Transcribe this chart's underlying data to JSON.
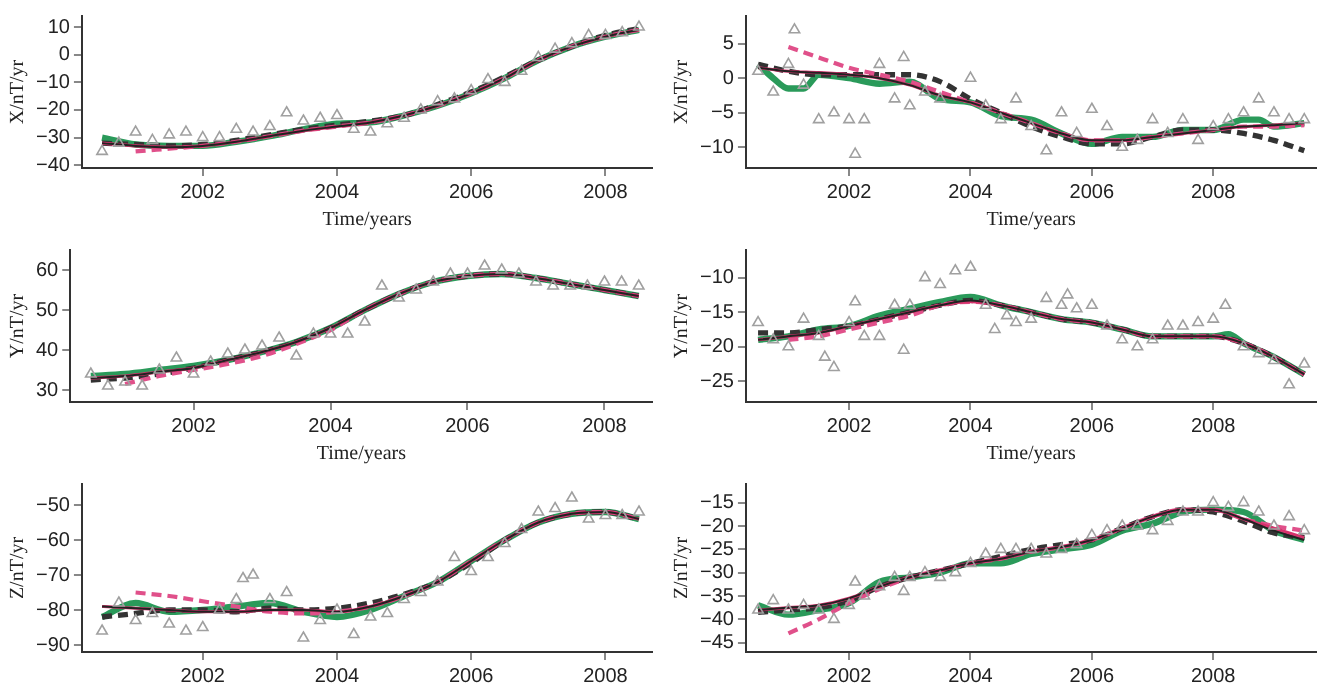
{
  "chart_data": [
    {
      "type": "line",
      "xlabel": "Time/years",
      "ylabel": "X/nT/yr",
      "xlim": [
        2000.2,
        2008.7
      ],
      "xticks": [
        2002,
        2004,
        2006,
        2008
      ],
      "ylim": [
        -41,
        14
      ],
      "yticks": [
        -40,
        -30,
        -20,
        -10,
        0,
        10
      ],
      "grid": false,
      "legend": false,
      "series": [
        {
          "type": "scatter",
          "marker": "triangle",
          "color": "#a0a0a0",
          "x": [
            2000.5,
            2000.75,
            2001,
            2001.25,
            2001.5,
            2001.75,
            2002,
            2002.25,
            2002.5,
            2002.75,
            2003,
            2003.25,
            2003.5,
            2003.75,
            2004,
            2004.25,
            2004.5,
            2004.75,
            2005,
            2005.25,
            2005.5,
            2005.75,
            2006,
            2006.25,
            2006.5,
            2006.75,
            2007,
            2007.25,
            2007.5,
            2007.75,
            2008,
            2008.25,
            2008.5
          ],
          "values": [
            -35,
            -32,
            -28,
            -31,
            -29,
            -28,
            -30,
            -30,
            -27,
            -28,
            -26,
            -21,
            -24,
            -23,
            -22,
            -27,
            -28,
            -25,
            -23,
            -20,
            -17,
            -16,
            -13,
            -9,
            -10,
            -6,
            -1,
            2,
            4,
            7,
            7,
            8,
            10
          ]
        },
        {
          "type": "line",
          "marker": "none",
          "line_style": "solid",
          "color": "#2a9a5a",
          "x": [
            2000.5,
            2001,
            2001.5,
            2002,
            2002.5,
            2003,
            2003.5,
            2004,
            2004.5,
            2005,
            2005.5,
            2006,
            2006.5,
            2007,
            2007.5,
            2008,
            2008.5
          ],
          "values": [
            -30,
            -32.5,
            -33,
            -33,
            -31.5,
            -29.5,
            -27,
            -25,
            -24.5,
            -22,
            -18.5,
            -14,
            -8.5,
            -2,
            3,
            6.5,
            9
          ]
        },
        {
          "type": "line",
          "marker": "none",
          "line_style": "dashed",
          "color": "#333333",
          "x": [
            2000.5,
            2001,
            2001.5,
            2002,
            2002.5,
            2003,
            2003.5,
            2004,
            2004.5,
            2005,
            2005.5,
            2006,
            2006.5,
            2007,
            2007.5,
            2008,
            2008.5
          ],
          "values": [
            -32,
            -32.5,
            -33,
            -32.5,
            -31,
            -29,
            -27,
            -25.5,
            -24,
            -22,
            -18,
            -13.5,
            -8,
            -2,
            3,
            7,
            9.5
          ]
        },
        {
          "type": "line",
          "marker": "none",
          "line_style": "dashed",
          "color": "#e0508a",
          "x": [
            2001,
            2001.5,
            2002,
            2002.5,
            2003,
            2003.5,
            2004,
            2004.5,
            2005,
            2005.5,
            2006,
            2006.5,
            2007,
            2007.5,
            2008,
            2008.5
          ],
          "values": [
            -35,
            -34,
            -33,
            -31.5,
            -29.5,
            -27.5,
            -26,
            -24.5,
            -22,
            -18.5,
            -14,
            -8.5,
            -2,
            3,
            6.5,
            9
          ]
        },
        {
          "type": "line",
          "marker": "none",
          "line_style": "solid",
          "color": "#d6336c",
          "x": [
            2000.5,
            2001,
            2001.5,
            2002,
            2002.5,
            2003,
            2003.5,
            2004,
            2004.5,
            2005,
            2005.5,
            2006,
            2006.5,
            2007,
            2007.5,
            2008,
            2008.5
          ],
          "values": [
            -32,
            -33,
            -33.5,
            -33,
            -31.5,
            -29.5,
            -27.5,
            -26,
            -24.5,
            -22,
            -18.5,
            -14,
            -8.5,
            -2,
            3,
            6.5,
            9
          ]
        },
        {
          "type": "line",
          "marker": "none",
          "line_style": "solid",
          "color": "#222222",
          "x": [
            2000.5,
            2001,
            2001.5,
            2002,
            2002.5,
            2003,
            2003.5,
            2004,
            2004.5,
            2005,
            2005.5,
            2006,
            2006.5,
            2007,
            2007.5,
            2008,
            2008.5
          ],
          "values": [
            -32,
            -33,
            -33.5,
            -33,
            -31.5,
            -29.5,
            -27.5,
            -26,
            -24.5,
            -22,
            -18.5,
            -14,
            -8.5,
            -2,
            3,
            6.5,
            9
          ]
        }
      ]
    },
    {
      "type": "line",
      "xlabel": "Time/years",
      "ylabel": "X/nT/yr",
      "xlim": [
        2000.3,
        2009.7
      ],
      "xticks": [
        2002,
        2004,
        2006,
        2008
      ],
      "ylim": [
        -13,
        9
      ],
      "yticks": [
        -10,
        -5,
        0,
        5
      ],
      "grid": false,
      "legend": false,
      "series": [
        {
          "type": "scatter",
          "marker": "triangle",
          "color": "#a0a0a0",
          "x": [
            2000.5,
            2000.75,
            2001,
            2001.1,
            2001.25,
            2001.5,
            2001.75,
            2002,
            2002.1,
            2002.25,
            2002.5,
            2002.75,
            2002.9,
            2003,
            2003.25,
            2003.5,
            2004,
            2004.25,
            2004.5,
            2004.75,
            2005,
            2005.25,
            2005.5,
            2005.75,
            2006,
            2006.25,
            2006.5,
            2006.75,
            2007,
            2007.25,
            2007.5,
            2007.75,
            2008,
            2008.25,
            2008.5,
            2008.75,
            2009,
            2009.25,
            2009.5
          ],
          "values": [
            1,
            -2,
            2,
            7,
            -1,
            -6,
            -5,
            -6,
            -11,
            -6,
            2,
            -3,
            3,
            -4,
            -2,
            -3,
            0,
            -4,
            -6,
            -3,
            -7,
            -10.5,
            -5,
            -8,
            -4.5,
            -7,
            -10,
            -9,
            -6,
            -8,
            -6,
            -9,
            -7,
            -6,
            -5,
            -3,
            -5,
            -6,
            -6
          ]
        },
        {
          "type": "line",
          "marker": "none",
          "line_style": "solid",
          "color": "#2a9a5a",
          "x": [
            2000.5,
            2000.75,
            2001,
            2001.25,
            2001.5,
            2002,
            2002.5,
            2003,
            2003.5,
            2004,
            2004.5,
            2005,
            2005.5,
            2006,
            2006.5,
            2007,
            2007.5,
            2008,
            2008.5,
            2008.75,
            2009,
            2009.5
          ],
          "values": [
            2,
            0,
            -1.5,
            -1.5,
            0.5,
            0,
            -0.8,
            -0.5,
            -3,
            -3.5,
            -5.5,
            -6,
            -8,
            -9.5,
            -8.5,
            -8.5,
            -7.5,
            -7.5,
            -6,
            -6,
            -7,
            -6.5
          ]
        },
        {
          "type": "line",
          "marker": "none",
          "line_style": "dashed",
          "color": "#333333",
          "x": [
            2000.5,
            2001,
            2001.5,
            2002,
            2002.5,
            2003,
            2003.5,
            2004,
            2004.5,
            2005,
            2005.5,
            2006,
            2006.5,
            2007,
            2007.5,
            2008,
            2008.5,
            2009,
            2009.5
          ],
          "values": [
            2,
            1,
            0.5,
            0.5,
            0.5,
            0.5,
            -0.5,
            -3,
            -5,
            -7,
            -8.5,
            -9.5,
            -9.5,
            -8.5,
            -7.5,
            -7.5,
            -8,
            -9,
            -10.5
          ]
        },
        {
          "type": "line",
          "marker": "none",
          "line_style": "dashed",
          "color": "#e0508a",
          "x": [
            2001,
            2001.5,
            2002,
            2002.5,
            2003,
            2003.5,
            2004,
            2004.5,
            2005,
            2005.5,
            2006,
            2006.5,
            2007,
            2007.5,
            2008,
            2008.5,
            2009,
            2009.5
          ],
          "values": [
            4.5,
            3,
            1.5,
            0.5,
            -0.5,
            -2,
            -3.5,
            -5,
            -6.5,
            -8,
            -9,
            -9,
            -8.5,
            -8,
            -7.5,
            -7,
            -7,
            -6.8
          ]
        },
        {
          "type": "line",
          "marker": "none",
          "line_style": "solid",
          "color": "#d6336c",
          "x": [
            2000.5,
            2001,
            2001.5,
            2002,
            2002.5,
            2003,
            2003.5,
            2004,
            2004.5,
            2005,
            2005.5,
            2006,
            2006.5,
            2007,
            2007.5,
            2008,
            2008.5,
            2009,
            2009.5
          ],
          "values": [
            1.5,
            1,
            0.8,
            0.5,
            0,
            -1,
            -2.5,
            -3.5,
            -5,
            -6.5,
            -8,
            -9,
            -9,
            -8.5,
            -8,
            -7.5,
            -7,
            -6.8,
            -6.5
          ]
        },
        {
          "type": "line",
          "marker": "none",
          "line_style": "solid",
          "color": "#222222",
          "x": [
            2000.5,
            2001,
            2001.5,
            2002,
            2002.5,
            2003,
            2003.5,
            2004,
            2004.5,
            2005,
            2005.5,
            2006,
            2006.5,
            2007,
            2007.5,
            2008,
            2008.5,
            2009,
            2009.5
          ],
          "values": [
            1.5,
            1,
            0.8,
            0.5,
            0,
            -1,
            -2.5,
            -3.5,
            -5,
            -6.5,
            -8,
            -9,
            -9,
            -8.5,
            -8,
            -7.5,
            -7,
            -6.8,
            -6.5
          ]
        }
      ]
    },
    {
      "type": "line",
      "xlabel": "Time/years",
      "ylabel": "Y/nT/yr",
      "xlim": [
        2000.2,
        2008.7
      ],
      "xticks": [
        2002,
        2004,
        2006,
        2008
      ],
      "ylim": [
        27,
        65
      ],
      "yticks": [
        30,
        40,
        50,
        60
      ],
      "grid": false,
      "legend": false,
      "series": [
        {
          "type": "scatter",
          "marker": "triangle",
          "color": "#a0a0a0",
          "x": [
            2000.5,
            2000.75,
            2001,
            2001.25,
            2001.5,
            2001.75,
            2002,
            2002.25,
            2002.5,
            2002.75,
            2003,
            2003.25,
            2003.5,
            2003.75,
            2004,
            2004.25,
            2004.5,
            2004.75,
            2005,
            2005.25,
            2005.5,
            2005.75,
            2006,
            2006.25,
            2006.5,
            2006.75,
            2007,
            2007.25,
            2007.5,
            2007.75,
            2008,
            2008.25,
            2008.5
          ],
          "values": [
            34,
            31,
            32,
            31,
            35,
            38,
            34,
            37,
            39,
            40,
            41,
            43,
            38.5,
            44,
            44,
            44,
            47,
            56,
            53,
            55,
            57,
            59,
            59,
            61,
            60,
            59,
            57,
            56,
            56,
            56,
            57,
            57,
            56
          ]
        },
        {
          "type": "line",
          "marker": "none",
          "line_style": "solid",
          "color": "#2a9a5a",
          "x": [
            2000.5,
            2001,
            2001.5,
            2002,
            2002.5,
            2003,
            2003.5,
            2004,
            2004.5,
            2005,
            2005.5,
            2006,
            2006.5,
            2007,
            2007.5,
            2008,
            2008.5
          ],
          "values": [
            33.5,
            34,
            35,
            36,
            37.5,
            39.5,
            42,
            45.5,
            50,
            54,
            57,
            58.5,
            59,
            58,
            56.5,
            55,
            53.5
          ]
        },
        {
          "type": "line",
          "marker": "none",
          "line_style": "dashed",
          "color": "#333333",
          "x": [
            2000.5,
            2001,
            2001.5,
            2002,
            2002.5,
            2003,
            2003.5,
            2004,
            2004.5,
            2005,
            2005.5,
            2006,
            2006.5,
            2007,
            2007.5,
            2008,
            2008.5
          ],
          "values": [
            32.5,
            33,
            34,
            35.5,
            37.5,
            39.5,
            42,
            45.5,
            50,
            54,
            57,
            58.5,
            59,
            58,
            56.5,
            55,
            53.5
          ]
        },
        {
          "type": "line",
          "marker": "none",
          "line_style": "dashed",
          "color": "#e0508a",
          "x": [
            2001,
            2001.5,
            2002,
            2002.5,
            2003,
            2003.5,
            2004,
            2004.5,
            2005,
            2005.5,
            2006,
            2006.5,
            2007,
            2007.5,
            2008,
            2008.5
          ],
          "values": [
            31.5,
            33.5,
            35,
            36.5,
            38.5,
            41.5,
            45,
            50,
            54,
            57,
            58.5,
            59,
            58,
            56.5,
            55,
            53.5
          ]
        },
        {
          "type": "line",
          "marker": "none",
          "line_style": "solid",
          "color": "#d6336c",
          "x": [
            2000.5,
            2001,
            2001.5,
            2002,
            2002.5,
            2003,
            2003.5,
            2004,
            2004.5,
            2005,
            2005.5,
            2006,
            2006.5,
            2007,
            2007.5,
            2008,
            2008.5
          ],
          "values": [
            33,
            33.5,
            34.5,
            35.5,
            37.5,
            39.5,
            42,
            45.5,
            50,
            54,
            57,
            58.5,
            59,
            58,
            56.5,
            55,
            53.5
          ]
        },
        {
          "type": "line",
          "marker": "none",
          "line_style": "solid",
          "color": "#222222",
          "x": [
            2000.5,
            2001,
            2001.5,
            2002,
            2002.5,
            2003,
            2003.5,
            2004,
            2004.5,
            2005,
            2005.5,
            2006,
            2006.5,
            2007,
            2007.5,
            2008,
            2008.5
          ],
          "values": [
            33,
            33.5,
            34.5,
            35.5,
            37.5,
            39.5,
            42,
            45.5,
            50,
            54,
            57,
            58.5,
            59,
            58,
            56.5,
            55,
            53.5
          ]
        }
      ]
    },
    {
      "type": "line",
      "xlabel": "Time/years",
      "ylabel": "Y/nT/yr",
      "xlim": [
        2000.3,
        2009.7
      ],
      "xticks": [
        2002,
        2004,
        2006,
        2008
      ],
      "ylim": [
        -28,
        -6
      ],
      "yticks": [
        -25,
        -20,
        -15,
        -10
      ],
      "grid": false,
      "legend": false,
      "series": [
        {
          "type": "scatter",
          "marker": "triangle",
          "color": "#a0a0a0",
          "x": [
            2000.5,
            2000.75,
            2001,
            2001.25,
            2001.5,
            2001.6,
            2001.75,
            2002,
            2002.1,
            2002.25,
            2002.5,
            2002.75,
            2002.9,
            2003,
            2003.25,
            2003.5,
            2003.75,
            2004,
            2004.25,
            2004.4,
            2004.6,
            2004.75,
            2005,
            2005.25,
            2005.5,
            2005.6,
            2005.75,
            2006,
            2006.25,
            2006.5,
            2006.75,
            2007,
            2007.25,
            2007.5,
            2007.75,
            2008,
            2008.2,
            2008.5,
            2008.75,
            2009,
            2009.25,
            2009.5
          ],
          "values": [
            -16.5,
            -19,
            -20,
            -16,
            -18.5,
            -21.5,
            -23,
            -16.5,
            -13.5,
            -18.5,
            -18.5,
            -14,
            -20.5,
            -14,
            -10,
            -11,
            -9,
            -8.5,
            -14,
            -17.5,
            -15.5,
            -16.5,
            -16,
            -13,
            -14,
            -12.5,
            -14.5,
            -14,
            -17,
            -19,
            -20,
            -19,
            -17,
            -17,
            -16.5,
            -16,
            -14,
            -20,
            -21,
            -22,
            -25.5,
            -22.5
          ]
        },
        {
          "type": "line",
          "marker": "none",
          "line_style": "solid",
          "color": "#2a9a5a",
          "x": [
            2000.5,
            2001,
            2001.5,
            2002,
            2002.5,
            2003,
            2003.5,
            2004,
            2004.5,
            2005,
            2005.5,
            2006,
            2006.5,
            2007,
            2007.5,
            2008,
            2008.25,
            2008.5,
            2009,
            2009.5
          ],
          "values": [
            -19,
            -18.5,
            -17.5,
            -17,
            -15.5,
            -14.5,
            -13.5,
            -12.8,
            -14,
            -15,
            -16,
            -16.5,
            -17.5,
            -18.5,
            -18.5,
            -18.5,
            -18.2,
            -19.5,
            -21.5,
            -24
          ]
        },
        {
          "type": "line",
          "marker": "none",
          "line_style": "dashed",
          "color": "#333333",
          "x": [
            2000.5,
            2001,
            2001.5,
            2002,
            2002.5,
            2003,
            2003.5,
            2004,
            2004.5,
            2005,
            2005.5,
            2006,
            2006.5,
            2007,
            2007.5,
            2008,
            2008.5,
            2009,
            2009.5
          ],
          "values": [
            -18,
            -18,
            -17.5,
            -17,
            -16,
            -15,
            -14,
            -13.3,
            -14,
            -15,
            -16,
            -16.5,
            -17.5,
            -18.5,
            -18.5,
            -18.5,
            -19.5,
            -21.5,
            -24
          ]
        },
        {
          "type": "line",
          "marker": "none",
          "line_style": "dashed",
          "color": "#e0508a",
          "x": [
            2001,
            2001.5,
            2002,
            2002.5,
            2003,
            2003.5,
            2004,
            2004.5,
            2005,
            2005.5,
            2006,
            2006.5,
            2007,
            2007.5,
            2008,
            2008.5,
            2009,
            2009.5
          ],
          "values": [
            -19,
            -18.5,
            -17.5,
            -16.5,
            -15.5,
            -14,
            -13.5,
            -14,
            -15,
            -16,
            -16.5,
            -17.5,
            -18.5,
            -18.5,
            -18.5,
            -19.5,
            -21.5,
            -24
          ]
        },
        {
          "type": "line",
          "marker": "none",
          "line_style": "solid",
          "color": "#d6336c",
          "x": [
            2000.5,
            2001,
            2001.5,
            2002,
            2002.5,
            2003,
            2003.5,
            2004,
            2004.5,
            2005,
            2005.5,
            2006,
            2006.5,
            2007,
            2007.5,
            2008,
            2008.5,
            2009,
            2009.5
          ],
          "values": [
            -19,
            -18.5,
            -18,
            -17,
            -16,
            -15,
            -14,
            -13.5,
            -14,
            -15,
            -16,
            -16.5,
            -17.5,
            -18.5,
            -18.5,
            -18.5,
            -19.5,
            -21.5,
            -24
          ]
        },
        {
          "type": "line",
          "marker": "none",
          "line_style": "solid",
          "color": "#222222",
          "x": [
            2000.5,
            2001,
            2001.5,
            2002,
            2002.5,
            2003,
            2003.5,
            2004,
            2004.5,
            2005,
            2005.5,
            2006,
            2006.5,
            2007,
            2007.5,
            2008,
            2008.5,
            2009,
            2009.5
          ],
          "values": [
            -19,
            -18.5,
            -18,
            -17,
            -16,
            -15,
            -14,
            -13.3,
            -14,
            -15,
            -16,
            -16.5,
            -17.5,
            -18.5,
            -18.5,
            -18.5,
            -19.5,
            -21.5,
            -24
          ]
        }
      ]
    },
    {
      "type": "line",
      "ylabel": "Z/nT/yr",
      "xlim": [
        2000.2,
        2008.7
      ],
      "xticks": [
        2002,
        2004,
        2006,
        2008
      ],
      "ylim": [
        -92,
        -44
      ],
      "yticks": [
        -90,
        -80,
        -70,
        -60,
        -50
      ],
      "grid": false,
      "legend": false,
      "series": [
        {
          "type": "scatter",
          "marker": "triangle",
          "color": "#a0a0a0",
          "x": [
            2000.5,
            2000.75,
            2001,
            2001.25,
            2001.5,
            2001.75,
            2002,
            2002.25,
            2002.5,
            2002.6,
            2002.75,
            2003,
            2003.25,
            2003.5,
            2003.75,
            2004,
            2004.25,
            2004.5,
            2004.75,
            2005,
            2005.25,
            2005.5,
            2005.75,
            2006,
            2006.25,
            2006.5,
            2006.75,
            2007,
            2007.25,
            2007.5,
            2007.75,
            2008,
            2008.25,
            2008.5
          ],
          "values": [
            -86,
            -78,
            -83,
            -81,
            -84,
            -86,
            -85,
            -80,
            -77,
            -71,
            -70,
            -77,
            -75,
            -88,
            -83,
            -80,
            -87,
            -82,
            -81,
            -77,
            -75,
            -72,
            -65,
            -69,
            -65,
            -61,
            -57,
            -52,
            -51,
            -48,
            -54,
            -53,
            -53,
            -52
          ]
        },
        {
          "type": "line",
          "marker": "none",
          "line_style": "solid",
          "color": "#2a9a5a",
          "x": [
            2000.5,
            2001,
            2001.5,
            2002,
            2002.5,
            2003,
            2003.5,
            2004,
            2004.5,
            2005,
            2005.5,
            2006,
            2006.5,
            2007,
            2007.5,
            2008,
            2008.5
          ],
          "values": [
            -82,
            -78,
            -80.5,
            -80,
            -79,
            -78,
            -80.5,
            -82,
            -80,
            -76,
            -72,
            -66,
            -60,
            -55,
            -52.5,
            -52,
            -54
          ]
        },
        {
          "type": "line",
          "marker": "none",
          "line_style": "dashed",
          "color": "#333333",
          "x": [
            2000.5,
            2001,
            2001.5,
            2002,
            2002.5,
            2003,
            2003.5,
            2004,
            2004.5,
            2005,
            2005.5,
            2006,
            2006.5,
            2007,
            2007.5,
            2008,
            2008.5
          ],
          "values": [
            -82,
            -81,
            -80,
            -80,
            -80.5,
            -79.5,
            -80,
            -79.5,
            -78,
            -75.5,
            -72,
            -66.5,
            -60,
            -55,
            -52.5,
            -52,
            -54
          ]
        },
        {
          "type": "line",
          "marker": "none",
          "line_style": "dashed",
          "color": "#e0508a",
          "x": [
            2001,
            2001.5,
            2002,
            2002.5,
            2003,
            2003.5,
            2004,
            2004.5,
            2005,
            2005.5,
            2006,
            2006.5,
            2007,
            2007.5,
            2008,
            2008.5
          ],
          "values": [
            -75,
            -76,
            -77.5,
            -79,
            -80.5,
            -81,
            -80.5,
            -79,
            -76,
            -72,
            -66,
            -60,
            -55,
            -52.5,
            -52,
            -54
          ]
        },
        {
          "type": "line",
          "marker": "none",
          "line_style": "solid",
          "color": "#d6336c",
          "x": [
            2000.5,
            2001,
            2001.5,
            2002,
            2002.5,
            2003,
            2003.5,
            2004,
            2004.5,
            2005,
            2005.5,
            2006,
            2006.5,
            2007,
            2007.5,
            2008,
            2008.5
          ],
          "values": [
            -79,
            -79.5,
            -80,
            -80.5,
            -80.5,
            -80,
            -80,
            -80.5,
            -79,
            -76,
            -72,
            -66,
            -60,
            -55,
            -52.5,
            -52,
            -54
          ]
        },
        {
          "type": "line",
          "marker": "none",
          "line_style": "solid",
          "color": "#222222",
          "x": [
            2000.5,
            2001,
            2001.5,
            2002,
            2002.5,
            2003,
            2003.5,
            2004,
            2004.5,
            2005,
            2005.5,
            2006,
            2006.5,
            2007,
            2007.5,
            2008,
            2008.5
          ],
          "values": [
            -79,
            -79.5,
            -80,
            -80.5,
            -80.5,
            -80,
            -80,
            -80.5,
            -79,
            -76,
            -72,
            -66,
            -60,
            -55,
            -52.5,
            -52,
            -54
          ]
        }
      ]
    },
    {
      "type": "line",
      "ylabel": "Z/nT/yr",
      "xlim": [
        2000.3,
        2009.7
      ],
      "xticks": [
        2002,
        2004,
        2006,
        2008
      ],
      "ylim": [
        -47,
        -11
      ],
      "yticks": [
        -45,
        -40,
        -35,
        -30,
        -25,
        -20,
        -15
      ],
      "grid": false,
      "legend": false,
      "series": [
        {
          "type": "scatter",
          "marker": "triangle",
          "color": "#a0a0a0",
          "x": [
            2000.5,
            2000.75,
            2001,
            2001.25,
            2001.5,
            2001.75,
            2002,
            2002.1,
            2002.25,
            2002.5,
            2002.75,
            2002.9,
            2003,
            2003.25,
            2003.5,
            2003.75,
            2004,
            2004.25,
            2004.5,
            2004.75,
            2005,
            2005.25,
            2005.5,
            2005.75,
            2006,
            2006.25,
            2006.5,
            2006.75,
            2007,
            2007.25,
            2007.5,
            2007.75,
            2008,
            2008.25,
            2008.5,
            2008.75,
            2009,
            2009.25,
            2009.5
          ],
          "values": [
            -38,
            -36,
            -38,
            -37,
            -38,
            -40,
            -37,
            -32,
            -35,
            -33,
            -31,
            -34,
            -31,
            -30,
            -31,
            -30,
            -28,
            -26,
            -25,
            -25,
            -25,
            -26,
            -25,
            -24,
            -22,
            -21,
            -20,
            -20,
            -21,
            -19,
            -17,
            -17,
            -15,
            -16,
            -15,
            -17,
            -20,
            -18,
            -21
          ]
        },
        {
          "type": "line",
          "marker": "none",
          "line_style": "solid",
          "color": "#2a9a5a",
          "x": [
            2000.5,
            2001,
            2001.5,
            2002,
            2002.5,
            2003,
            2003.5,
            2004,
            2004.5,
            2005,
            2005.5,
            2006,
            2006.5,
            2007,
            2007.5,
            2008,
            2008.5,
            2009,
            2009.5
          ],
          "values": [
            -37,
            -39,
            -38,
            -36.5,
            -32,
            -31,
            -30,
            -28,
            -28,
            -26,
            -25,
            -24,
            -21,
            -19.5,
            -17,
            -16.5,
            -17,
            -21,
            -23
          ]
        },
        {
          "type": "line",
          "marker": "none",
          "line_style": "dashed",
          "color": "#333333",
          "x": [
            2000.5,
            2001,
            2001.5,
            2002,
            2002.5,
            2003,
            2003.5,
            2004,
            2004.5,
            2005,
            2005.5,
            2006,
            2006.5,
            2007,
            2007.5,
            2008,
            2008.5,
            2009,
            2009.5
          ],
          "values": [
            -38.5,
            -38,
            -37.5,
            -36,
            -33,
            -31,
            -29.5,
            -28,
            -26.5,
            -25,
            -24,
            -23,
            -20.5,
            -18,
            -16.5,
            -17,
            -19,
            -21.5,
            -22.5
          ]
        },
        {
          "type": "line",
          "marker": "none",
          "line_style": "dashed",
          "color": "#e0508a",
          "x": [
            2001,
            2001.5,
            2002,
            2002.5,
            2003,
            2003.5,
            2004,
            2004.5,
            2005,
            2005.5,
            2006,
            2006.5,
            2007,
            2007.5,
            2008,
            2008.5,
            2009,
            2009.5
          ],
          "values": [
            -43,
            -40,
            -36.5,
            -33.5,
            -31,
            -29.5,
            -28,
            -27,
            -25.5,
            -24.5,
            -23,
            -20.5,
            -18,
            -16.5,
            -16.5,
            -18.5,
            -20,
            -21
          ]
        },
        {
          "type": "line",
          "marker": "none",
          "line_style": "solid",
          "color": "#d6336c",
          "x": [
            2000.5,
            2001,
            2001.5,
            2002,
            2002.5,
            2003,
            2003.5,
            2004,
            2004.5,
            2005,
            2005.5,
            2006,
            2006.5,
            2007,
            2007.5,
            2008,
            2008.5,
            2009,
            2009.5
          ],
          "values": [
            -38,
            -37.5,
            -37,
            -35.5,
            -33,
            -31,
            -29.5,
            -28,
            -27,
            -25.5,
            -24.5,
            -23,
            -20.5,
            -18,
            -16.5,
            -16.5,
            -18.5,
            -20.5,
            -22.5
          ]
        },
        {
          "type": "line",
          "marker": "none",
          "line_style": "solid",
          "color": "#222222",
          "x": [
            2000.5,
            2001,
            2001.5,
            2002,
            2002.5,
            2003,
            2003.5,
            2004,
            2004.5,
            2005,
            2005.5,
            2006,
            2006.5,
            2007,
            2007.5,
            2008,
            2008.5,
            2009,
            2009.5
          ],
          "values": [
            -38,
            -37.5,
            -37,
            -35.5,
            -33,
            -31,
            -29.5,
            -28,
            -27,
            -25.5,
            -24.5,
            -23,
            -20.5,
            -18,
            -16.5,
            -16.5,
            -18.5,
            -21,
            -23
          ]
        }
      ]
    }
  ]
}
